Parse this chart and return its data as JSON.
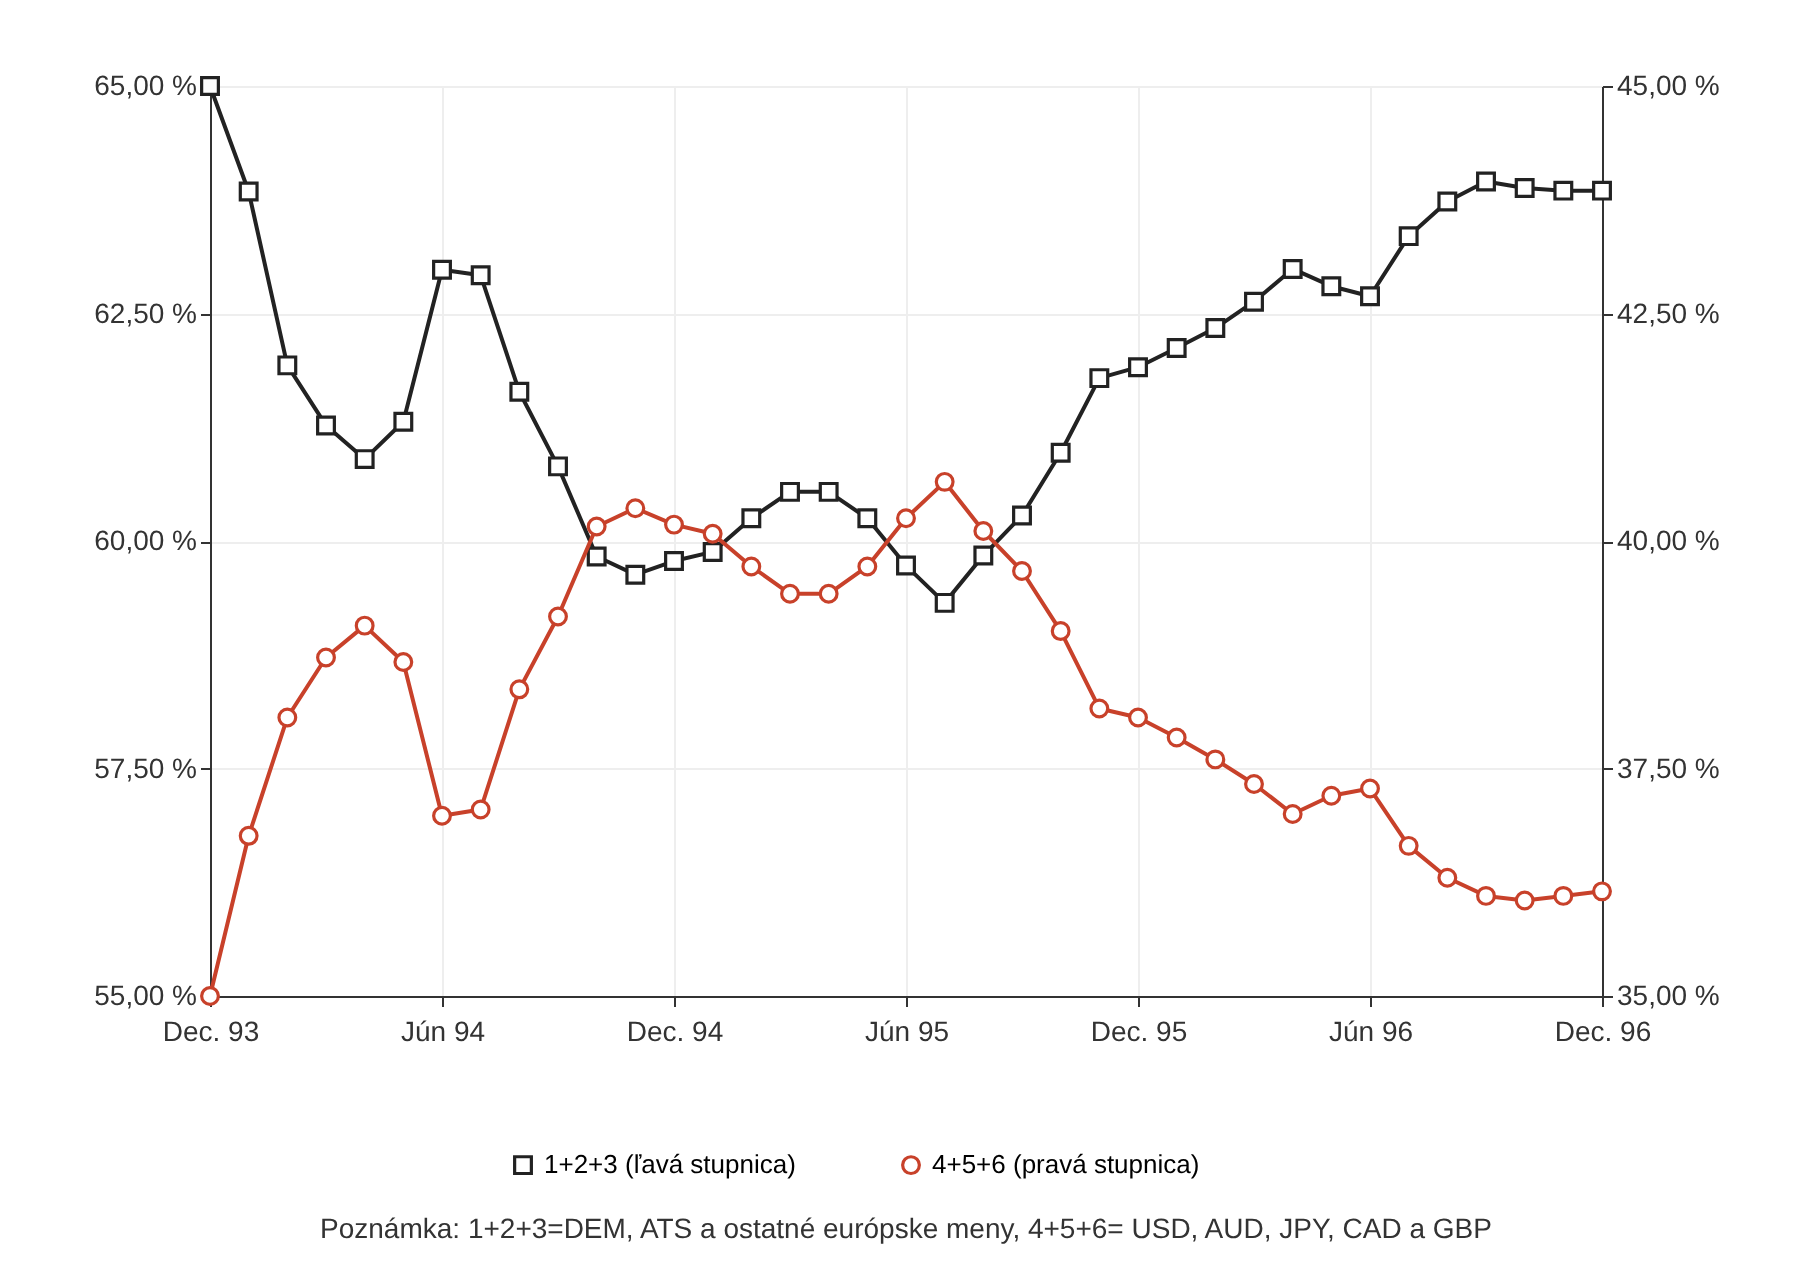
{
  "chart_data": {
    "type": "line",
    "categories": [
      "Dec. 93",
      null,
      null,
      null,
      null,
      null,
      "Jún 94",
      null,
      null,
      null,
      null,
      null,
      "Dec. 94",
      null,
      null,
      null,
      null,
      null,
      "Jún 95",
      null,
      null,
      null,
      null,
      null,
      "Dec. 95",
      null,
      null,
      null,
      null,
      null,
      "Jún 96",
      null,
      null,
      null,
      null,
      null,
      "Dec. 96"
    ],
    "series": [
      {
        "name": "1+2+3 (ľavá stupnica)",
        "color": "#222222",
        "marker": "square",
        "values": [
          65.0,
          63.84,
          61.93,
          61.27,
          60.9,
          61.31,
          62.98,
          62.92,
          61.64,
          60.82,
          59.83,
          59.63,
          59.78,
          59.88,
          60.25,
          60.54,
          60.54,
          60.25,
          59.73,
          59.32,
          59.84,
          60.28,
          60.97,
          61.79,
          61.91,
          62.12,
          62.34,
          62.63,
          62.99,
          62.8,
          62.69,
          63.35,
          63.73,
          63.95,
          63.88,
          63.85,
          63.85
        ]
      },
      {
        "name": "4+5+6 (pravá stupnica)",
        "color": "#c8412a",
        "marker": "circle",
        "axis": "y2",
        "values": [
          35.0,
          36.76,
          38.06,
          38.72,
          39.07,
          38.67,
          36.98,
          37.05,
          38.37,
          39.17,
          40.16,
          40.36,
          40.18,
          40.08,
          39.72,
          39.42,
          39.42,
          39.72,
          40.25,
          40.65,
          40.11,
          39.67,
          39.01,
          38.16,
          38.06,
          37.84,
          37.6,
          37.33,
          37.0,
          37.2,
          37.28,
          36.65,
          36.3,
          36.1,
          36.05,
          36.1,
          36.15
        ]
      }
    ],
    "ylim": [
      55,
      65
    ],
    "yticks": [
      {
        "value": 55,
        "label": "55,00 %"
      },
      {
        "value": 57.5,
        "label": "57,50 %"
      },
      {
        "value": 60,
        "label": "60,00 %"
      },
      {
        "value": 62.5,
        "label": "62,50 %"
      },
      {
        "value": 65,
        "label": "65,00 %"
      }
    ],
    "y2lim": [
      35,
      45
    ],
    "y2ticks": [
      {
        "value": 35,
        "label": "35,00 %"
      },
      {
        "value": 37.5,
        "label": "37,50 %"
      },
      {
        "value": 40,
        "label": "40,00 %"
      },
      {
        "value": 42.5,
        "label": "42,50 %"
      },
      {
        "value": 45,
        "label": "45,00 %"
      }
    ],
    "grid": true,
    "legend": "bottom",
    "line_style": "solid",
    "annotations": [
      "Poznámka: 1+2+3=DEM, ATS a ostatné európske meny, 4+5+6= USD, AUD, JPY, CAD a GBP"
    ]
  }
}
